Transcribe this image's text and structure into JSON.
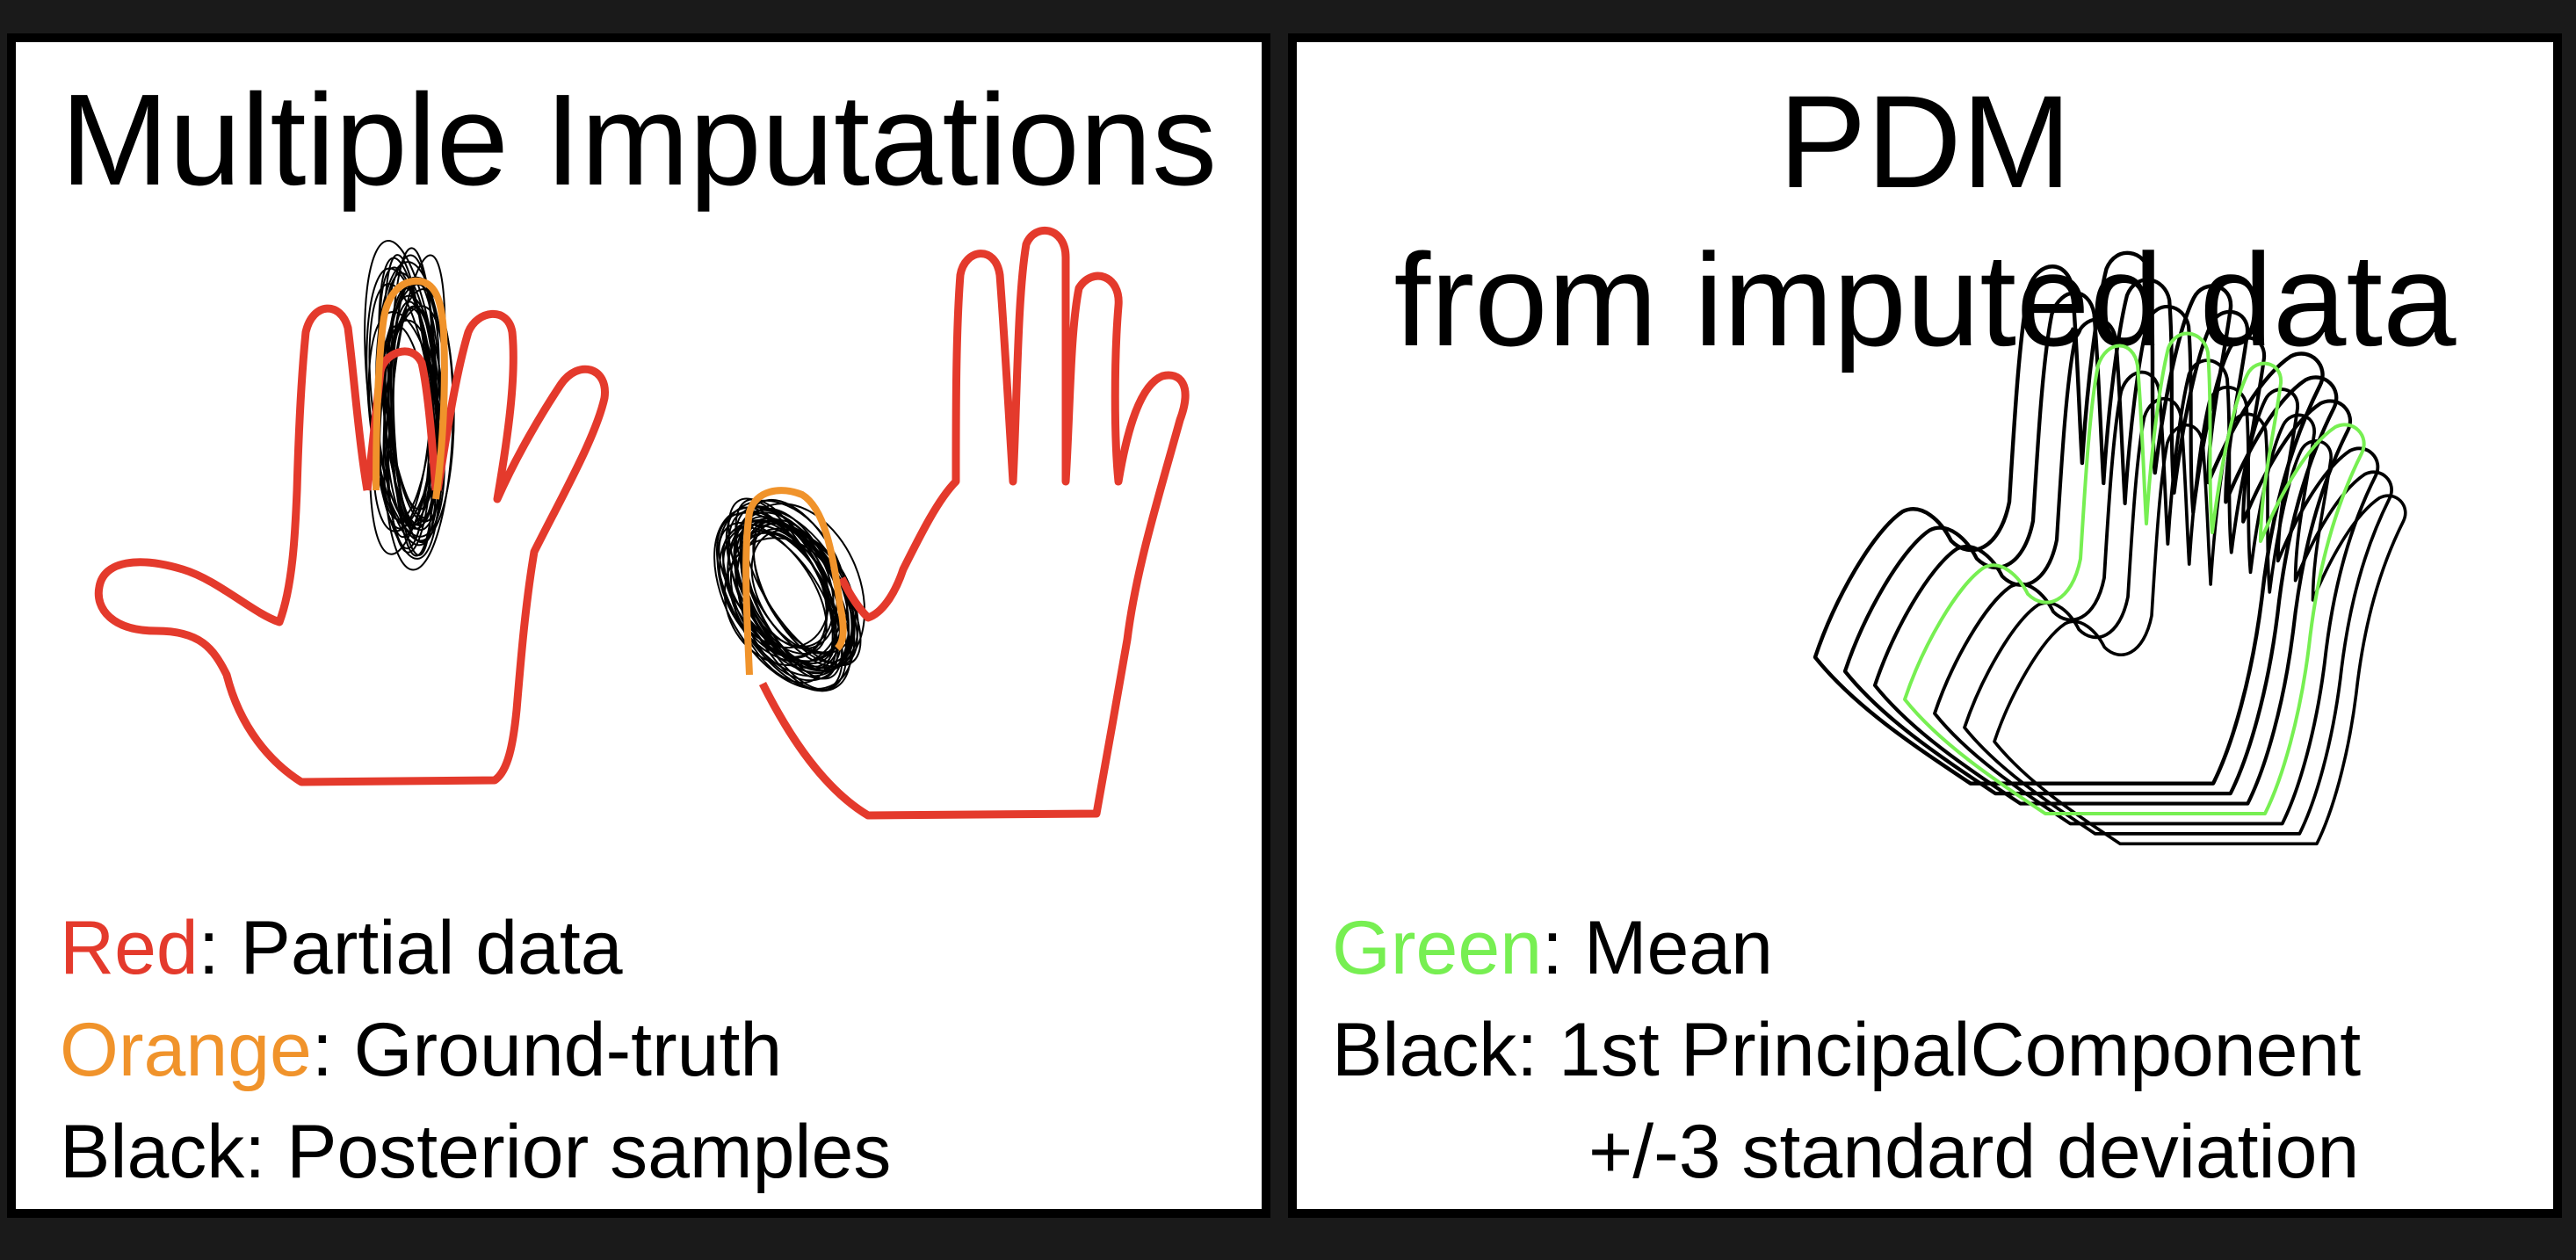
{
  "left_panel": {
    "title": "Multiple Imputations",
    "legend": [
      {
        "key": "Red",
        "text": ": Partial data",
        "color": "#e43a2c"
      },
      {
        "key": "Orange",
        "text": ": Ground-truth",
        "color": "#f0932b"
      },
      {
        "key": "",
        "text": "Black: Posterior samples",
        "color": "#000000"
      }
    ]
  },
  "right_panel": {
    "title_line1": "PDM",
    "title_line2": "from imputed data",
    "legend": [
      {
        "key": "Green",
        "text": ": Mean",
        "color": "#77ef52"
      },
      {
        "key": "",
        "text": "Black: 1st PrincipalComponent",
        "color": "#000000"
      },
      {
        "key": "",
        "text": "+/-3 standard deviation",
        "color": "#000000"
      }
    ]
  },
  "colors": {
    "partial": "#e43a2c",
    "ground_truth": "#f0932b",
    "samples": "#000000",
    "mean": "#77ef52",
    "component": "#000000"
  }
}
